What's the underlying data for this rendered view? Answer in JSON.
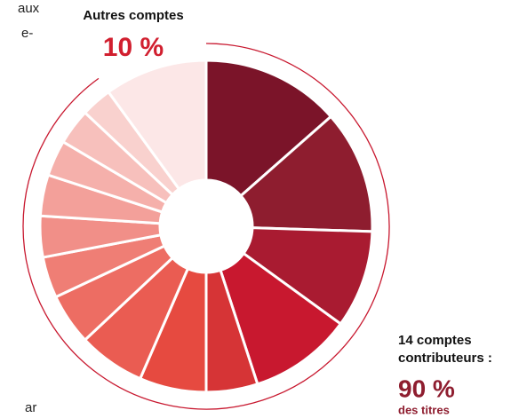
{
  "chart_data": {
    "type": "donut",
    "categories": [
      null,
      null,
      null,
      null,
      null,
      null,
      null,
      null,
      null,
      null,
      null,
      null,
      null,
      null,
      null
    ],
    "values": [
      13.5,
      12,
      9.5,
      10,
      5,
      6.5,
      6.5,
      5,
      4,
      4,
      4,
      3.5,
      3.5,
      3,
      10
    ],
    "colors": [
      "#7b1429",
      "#8e1d2f",
      "#a91b31",
      "#c8182f",
      "#d63436",
      "#e64a40",
      "#ea5c52",
      "#ed6d63",
      "#ef7e75",
      "#f18f88",
      "#f3a09a",
      "#f5b0ab",
      "#f7c0bc",
      "#f9d1ce",
      "#fce7e7"
    ],
    "others_label": "Autres comptes",
    "others_share": "10 %",
    "contributors_label": [
      "14 comptes",
      "contributeurs :"
    ],
    "contributors_share": "90 %",
    "contributors_unit": "des titres",
    "fragments": [
      "aux",
      "e-",
      "ar"
    ]
  }
}
